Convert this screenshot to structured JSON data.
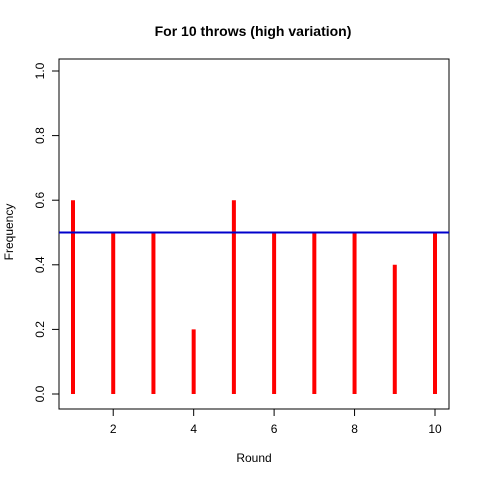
{
  "chart_data": {
    "type": "bar",
    "title": "For 10 throws (high variation)",
    "xlabel": "Round",
    "ylabel": "Frequency",
    "x": [
      1,
      2,
      3,
      4,
      5,
      6,
      7,
      8,
      9,
      10
    ],
    "values": [
      0.6,
      0.5,
      0.5,
      0.2,
      0.6,
      0.5,
      0.5,
      0.5,
      0.4,
      0.5
    ],
    "xlim": [
      1,
      10
    ],
    "ylim": [
      0,
      1
    ],
    "x_ticks": [
      2,
      4,
      6,
      8,
      10
    ],
    "y_ticks": [
      0.0,
      0.2,
      0.4,
      0.6,
      0.8,
      1.0
    ],
    "x_tick_labels": [
      "2",
      "4",
      "6",
      "8",
      "10"
    ],
    "y_tick_labels": [
      "0.0",
      "0.2",
      "0.4",
      "0.6",
      "0.8",
      "1.0"
    ],
    "reference_line": {
      "y": 0.5,
      "color": "#0000cc"
    },
    "bar_color": "#ff0000",
    "grid": false,
    "legend": "none"
  }
}
